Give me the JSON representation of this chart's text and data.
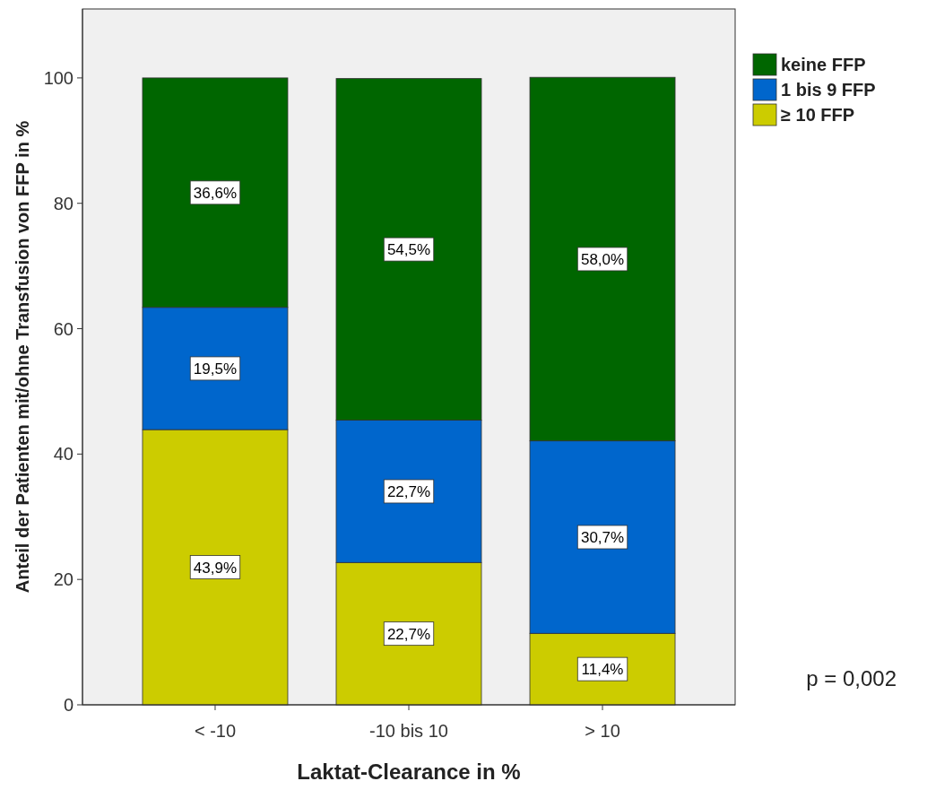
{
  "chart_data": {
    "type": "bar",
    "stacked": true,
    "xlabel": "Laktat-Clearance in %",
    "ylabel": "Anteil der Patienten mit/ohne Transfusion von FFP in %",
    "categories": [
      "< -10",
      "-10 bis 10",
      "> 10"
    ],
    "series": [
      {
        "name": "≥ 10 FFP",
        "color": "#cccc00",
        "values": [
          43.9,
          22.7,
          11.4
        ],
        "value_labels": [
          "43,9%",
          "22,7%",
          "11,4%"
        ]
      },
      {
        "name": "1 bis 9 FFP",
        "color": "#0066cc",
        "values": [
          19.5,
          22.7,
          30.7
        ],
        "value_labels": [
          "19,5%",
          "22,7%",
          "30,7%"
        ]
      },
      {
        "name": "keine FFP",
        "color": "#006600",
        "values": [
          36.6,
          54.5,
          58.0
        ],
        "value_labels": [
          "36,6%",
          "54,5%",
          "58,0%"
        ]
      }
    ],
    "ylim": [
      0,
      111
    ],
    "yticks": [
      0,
      20,
      40,
      60,
      80,
      100
    ],
    "grid": false,
    "legend": "top right",
    "annotations": [
      "p = 0,002"
    ]
  }
}
